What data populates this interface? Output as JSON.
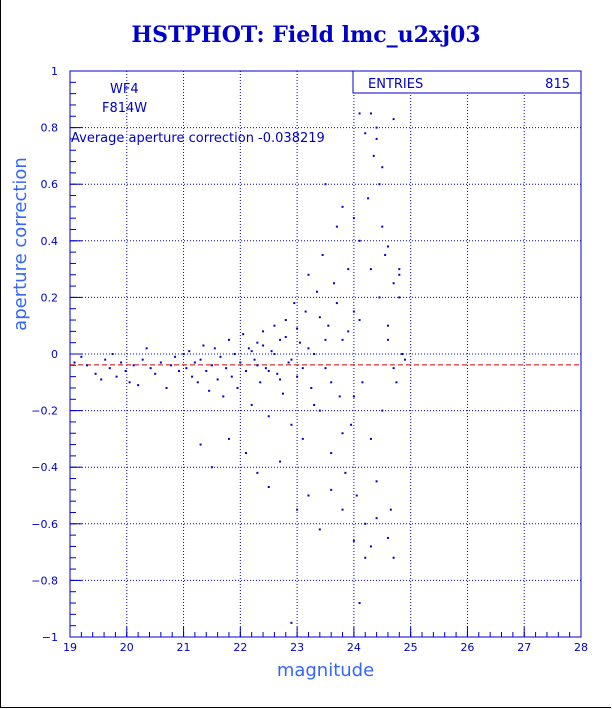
{
  "colors": {
    "axis": "#0000cc",
    "grid": "#0000cc",
    "points": "#0000cc",
    "average_line": "#cc0000",
    "axis_title": "#3366ff"
  },
  "chart_data": {
    "type": "scatter",
    "title": "HSTPHOT: Field lmc_u2xj03",
    "xlabel": "magnitude",
    "ylabel": "aperture correction",
    "xlim": [
      19,
      28
    ],
    "ylim": [
      -1,
      1
    ],
    "x_ticks": [
      19,
      20,
      21,
      22,
      23,
      24,
      25,
      26,
      27,
      28
    ],
    "y_ticks": [
      -1,
      -0.8,
      -0.6,
      -0.4,
      -0.2,
      0,
      0.2,
      0.4,
      0.6,
      0.8,
      1
    ],
    "grid": true,
    "grid_style": "dotted",
    "chip_label": "WF4",
    "filter_label": "F814W",
    "average_text": "Average aperture correction -0.038219",
    "average_value": -0.038219,
    "stats_box": {
      "label": "ENTRIES",
      "value": "815"
    },
    "series": [
      {
        "points": [
          [
            19.08,
            -0.03
          ],
          [
            19.2,
            -0.01
          ],
          [
            19.3,
            -0.04
          ],
          [
            19.45,
            -0.07
          ],
          [
            19.55,
            -0.09
          ],
          [
            19.62,
            -0.02
          ],
          [
            19.7,
            -0.05
          ],
          [
            19.75,
            0.0
          ],
          [
            19.82,
            -0.08
          ],
          [
            19.9,
            -0.03
          ],
          [
            19.98,
            -0.06
          ],
          [
            20.05,
            -0.1
          ],
          [
            20.12,
            -0.04
          ],
          [
            20.2,
            -0.11
          ],
          [
            20.28,
            -0.02
          ],
          [
            20.35,
            0.02
          ],
          [
            20.42,
            -0.05
          ],
          [
            20.5,
            -0.07
          ],
          [
            20.6,
            -0.03
          ],
          [
            20.7,
            -0.12
          ],
          [
            20.78,
            -0.04
          ],
          [
            20.85,
            -0.01
          ],
          [
            20.92,
            -0.06
          ],
          [
            21.0,
            0.0
          ],
          [
            21.05,
            -0.05
          ],
          [
            21.1,
            0.01
          ],
          [
            21.15,
            -0.08
          ],
          [
            21.2,
            -0.03
          ],
          [
            21.25,
            -0.1
          ],
          [
            21.3,
            -0.02
          ],
          [
            21.35,
            0.03
          ],
          [
            21.4,
            -0.06
          ],
          [
            21.45,
            -0.13
          ],
          [
            21.5,
            -0.04
          ],
          [
            21.55,
            0.02
          ],
          [
            21.6,
            -0.09
          ],
          [
            21.65,
            -0.01
          ],
          [
            21.7,
            -0.15
          ],
          [
            21.75,
            -0.05
          ],
          [
            21.8,
            0.05
          ],
          [
            21.85,
            -0.08
          ],
          [
            21.9,
            0.0
          ],
          [
            21.95,
            -0.12
          ],
          [
            22.0,
            -0.03
          ],
          [
            22.05,
            0.07
          ],
          [
            22.1,
            -0.06
          ],
          [
            22.15,
            0.02
          ],
          [
            22.2,
            -0.18
          ],
          [
            22.25,
            -0.02
          ],
          [
            22.3,
            0.04
          ],
          [
            22.35,
            -0.1
          ],
          [
            22.4,
            0.08
          ],
          [
            22.45,
            -0.05
          ],
          [
            22.5,
            -0.22
          ],
          [
            22.55,
            0.01
          ],
          [
            22.6,
            0.1
          ],
          [
            22.65,
            -0.07
          ],
          [
            22.7,
            0.05
          ],
          [
            22.75,
            -0.14
          ],
          [
            22.8,
            0.12
          ],
          [
            22.85,
            -0.03
          ],
          [
            22.9,
            -0.25
          ],
          [
            22.95,
            0.18
          ],
          [
            23.0,
            -0.08
          ],
          [
            23.05,
            0.04
          ],
          [
            23.1,
            -0.3
          ],
          [
            23.15,
            0.15
          ],
          [
            23.2,
            0.28
          ],
          [
            23.25,
            -0.12
          ],
          [
            23.3,
            0.0
          ],
          [
            23.35,
            0.22
          ],
          [
            23.4,
            -0.2
          ],
          [
            23.45,
            0.35
          ],
          [
            23.5,
            -0.05
          ],
          [
            23.55,
            0.1
          ],
          [
            23.6,
            -0.35
          ],
          [
            23.65,
            0.25
          ],
          [
            23.7,
            0.45
          ],
          [
            23.75,
            -0.15
          ],
          [
            23.8,
            0.05
          ],
          [
            23.85,
            -0.42
          ],
          [
            23.9,
            0.3
          ],
          [
            23.95,
            -0.25
          ],
          [
            24.0,
            0.15
          ],
          [
            24.05,
            -0.5
          ],
          [
            24.1,
            0.4
          ],
          [
            24.15,
            -0.1
          ],
          [
            24.2,
            -0.6
          ],
          [
            24.25,
            0.55
          ],
          [
            24.3,
            -0.3
          ],
          [
            24.35,
            0.7
          ],
          [
            24.4,
            -0.45
          ],
          [
            24.45,
            0.2
          ],
          [
            24.5,
            -0.2
          ],
          [
            24.55,
            0.35
          ],
          [
            24.6,
            0.05
          ],
          [
            24.65,
            -0.55
          ],
          [
            24.7,
            0.25
          ],
          [
            24.75,
            -0.1
          ],
          [
            24.8,
            0.3
          ],
          [
            22.2,
            0.01
          ],
          [
            22.3,
            -0.04
          ],
          [
            22.4,
            0.03
          ],
          [
            22.5,
            -0.06
          ],
          [
            22.6,
            0.0
          ],
          [
            22.7,
            -0.09
          ],
          [
            22.8,
            0.06
          ],
          [
            22.9,
            -0.02
          ],
          [
            23.0,
            0.09
          ],
          [
            23.1,
            -0.05
          ],
          [
            23.2,
            0.02
          ],
          [
            23.3,
            -0.18
          ],
          [
            23.4,
            0.13
          ],
          [
            23.5,
            0.05
          ],
          [
            23.6,
            -0.1
          ],
          [
            23.7,
            0.18
          ],
          [
            23.8,
            -0.28
          ],
          [
            23.9,
            0.08
          ],
          [
            24.0,
            -0.15
          ],
          [
            24.1,
            0.12
          ],
          [
            21.3,
            -0.32
          ],
          [
            21.5,
            -0.4
          ],
          [
            21.8,
            -0.3
          ],
          [
            22.1,
            -0.35
          ],
          [
            22.3,
            -0.42
          ],
          [
            22.5,
            -0.47
          ],
          [
            22.7,
            -0.38
          ],
          [
            23.0,
            -0.55
          ],
          [
            23.2,
            -0.5
          ],
          [
            23.4,
            -0.62
          ],
          [
            23.6,
            -0.48
          ],
          [
            23.8,
            -0.55
          ],
          [
            24.0,
            -0.66
          ],
          [
            24.2,
            -0.72
          ],
          [
            24.3,
            -0.68
          ],
          [
            24.6,
            -0.65
          ],
          [
            24.7,
            -0.72
          ],
          [
            24.4,
            -0.58
          ],
          [
            22.9,
            -0.95
          ],
          [
            24.1,
            -0.88
          ],
          [
            23.5,
            0.6
          ],
          [
            23.8,
            0.52
          ],
          [
            24.0,
            0.48
          ],
          [
            24.2,
            0.78
          ],
          [
            24.3,
            0.85
          ],
          [
            24.4,
            0.8
          ],
          [
            24.4,
            0.76
          ],
          [
            24.5,
            0.66
          ],
          [
            24.45,
            0.6
          ],
          [
            24.1,
            0.85
          ],
          [
            24.7,
            0.83
          ],
          [
            24.3,
            0.3
          ],
          [
            24.5,
            0.45
          ],
          [
            24.6,
            0.38
          ],
          [
            24.8,
            0.2
          ],
          [
            24.8,
            0.28
          ],
          [
            24.9,
            -0.02
          ],
          [
            24.7,
            -0.05
          ],
          [
            24.85,
            0.0
          ],
          [
            24.6,
            0.1
          ]
        ]
      }
    ]
  }
}
